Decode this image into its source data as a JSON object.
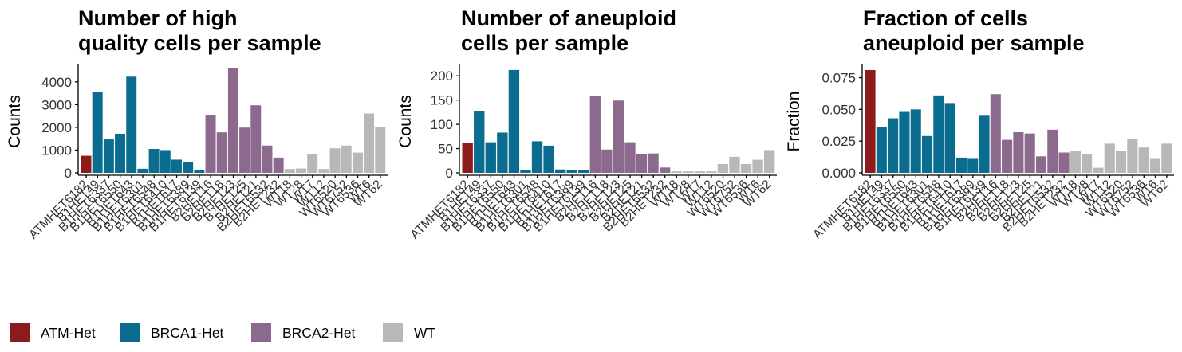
{
  "colors": {
    "ATM-Het": "#8E1B1B",
    "BRCA1-Het": "#0A6C8E",
    "BRCA2-Het": "#8C6A8E",
    "WT": "#B8B8B8"
  },
  "legend": [
    {
      "label": "ATM-Het",
      "color": "#8E1B1B"
    },
    {
      "label": "BRCA1-Het",
      "color": "#0A6C8E"
    },
    {
      "label": "BRCA2-Het",
      "color": "#8C6A8E"
    },
    {
      "label": "WT",
      "color": "#B8B8B8"
    }
  ],
  "chart_data": [
    {
      "type": "bar",
      "title": [
        "Number of high",
        "quality cells per sample"
      ],
      "ylabel": "Counts",
      "ylim": [
        0,
        4800
      ],
      "yticks": [
        0,
        1000,
        2000,
        3000,
        4000
      ],
      "yticklabels": [
        "0",
        "1000",
        "2000",
        "3000",
        "4000"
      ],
      "categories": [
        "ATMHET6182",
        "B1HET49",
        "B1HET6337",
        "B1HET6550",
        "B1HET643",
        "B1HET6301",
        "B1HET6548",
        "B1HET6410",
        "B1HET617",
        "B1HET6389",
        "B1HET6139",
        "B2HET16",
        "B2HET18",
        "B2HET23",
        "B2HET25",
        "B2HET21",
        "B2HET6532",
        "B2HET232",
        "WT18",
        "WT28",
        "WT7",
        "WT12",
        "WT6520",
        "WT6752",
        "WT6536",
        "WT6",
        "WT62"
      ],
      "groups": [
        "ATM-Het",
        "BRCA1-Het",
        "BRCA1-Het",
        "BRCA1-Het",
        "BRCA1-Het",
        "BRCA1-Het",
        "BRCA1-Het",
        "BRCA1-Het",
        "BRCA1-Het",
        "BRCA1-Het",
        "BRCA1-Het",
        "BRCA2-Het",
        "BRCA2-Het",
        "BRCA2-Het",
        "BRCA2-Het",
        "BRCA2-Het",
        "BRCA2-Het",
        "BRCA2-Het",
        "WT",
        "WT",
        "WT",
        "WT",
        "WT",
        "WT",
        "WT",
        "WT",
        "WT"
      ],
      "values": [
        750,
        3570,
        1470,
        1720,
        4230,
        180,
        1050,
        1000,
        580,
        460,
        120,
        2540,
        1780,
        4620,
        1990,
        2970,
        1200,
        670,
        170,
        190,
        820,
        170,
        1080,
        1200,
        890,
        2610,
        2010
      ]
    },
    {
      "type": "bar",
      "title": [
        "Number of aneuploid",
        "cells per sample"
      ],
      "ylabel": "Counts",
      "ylim": [
        0,
        225
      ],
      "yticks": [
        0,
        50,
        100,
        150,
        200
      ],
      "yticklabels": [
        "0",
        "50",
        "100",
        "150",
        "200"
      ],
      "categories": [
        "ATMHET6182",
        "B1HET49",
        "B1HET6337",
        "B1HET6550",
        "B1HET643",
        "B1HET6301",
        "B1HET6548",
        "B1HET6410",
        "B1HET617",
        "B1HET6389",
        "B1HET6139",
        "B2HET16",
        "B2HET18",
        "B2HET23",
        "B2HET25",
        "B2HET21",
        "B2HET6532",
        "B2HET232",
        "WT18",
        "WT28",
        "WT7",
        "WT12",
        "WT6520",
        "WT6752",
        "WT6536",
        "WT6",
        "WT62"
      ],
      "groups": [
        "ATM-Het",
        "BRCA1-Het",
        "BRCA1-Het",
        "BRCA1-Het",
        "BRCA1-Het",
        "BRCA1-Het",
        "BRCA1-Het",
        "BRCA1-Het",
        "BRCA1-Het",
        "BRCA1-Het",
        "BRCA1-Het",
        "BRCA2-Het",
        "BRCA2-Het",
        "BRCA2-Het",
        "BRCA2-Het",
        "BRCA2-Het",
        "BRCA2-Het",
        "BRCA2-Het",
        "WT",
        "WT",
        "WT",
        "WT",
        "WT",
        "WT",
        "WT",
        "WT",
        "WT"
      ],
      "values": [
        61,
        128,
        63,
        83,
        212,
        5,
        65,
        56,
        7,
        5,
        5,
        158,
        48,
        149,
        63,
        38,
        40,
        11,
        3,
        3,
        3,
        3,
        18,
        33,
        18,
        27,
        47
      ]
    },
    {
      "type": "bar",
      "title": [
        "Fraction of cells",
        "aneuploid per sample"
      ],
      "ylabel": "Fraction",
      "ylim": [
        0,
        0.086
      ],
      "yticks": [
        0,
        0.025,
        0.05,
        0.075
      ],
      "yticklabels": [
        "0.000",
        "0.025",
        "0.050",
        "0.075"
      ],
      "categories": [
        "ATMHET6182",
        "B1HET49",
        "B1HET6337",
        "B1HET6550",
        "B1HET643",
        "B1HET6301",
        "B1HET6548",
        "B1HET6410",
        "B1HET617",
        "B1HET6389",
        "B1HET6139",
        "B2HET16",
        "B2HET18",
        "B2HET23",
        "B2HET25",
        "B2HET21",
        "B2HET6532",
        "B2HET232",
        "WT18",
        "WT28",
        "WT7",
        "WT12",
        "WT6520",
        "WT6752",
        "WT6536",
        "WT6",
        "WT62"
      ],
      "groups": [
        "ATM-Het",
        "BRCA1-Het",
        "BRCA1-Het",
        "BRCA1-Het",
        "BRCA1-Het",
        "BRCA1-Het",
        "BRCA1-Het",
        "BRCA1-Het",
        "BRCA1-Het",
        "BRCA1-Het",
        "BRCA1-Het",
        "BRCA2-Het",
        "BRCA2-Het",
        "BRCA2-Het",
        "BRCA2-Het",
        "BRCA2-Het",
        "BRCA2-Het",
        "BRCA2-Het",
        "WT",
        "WT",
        "WT",
        "WT",
        "WT",
        "WT",
        "WT",
        "WT",
        "WT"
      ],
      "values": [
        0.081,
        0.036,
        0.043,
        0.048,
        0.05,
        0.029,
        0.061,
        0.055,
        0.012,
        0.011,
        0.045,
        0.062,
        0.026,
        0.032,
        0.031,
        0.013,
        0.034,
        0.016,
        0.017,
        0.015,
        0.004,
        0.023,
        0.017,
        0.027,
        0.02,
        0.011,
        0.023
      ]
    }
  ]
}
